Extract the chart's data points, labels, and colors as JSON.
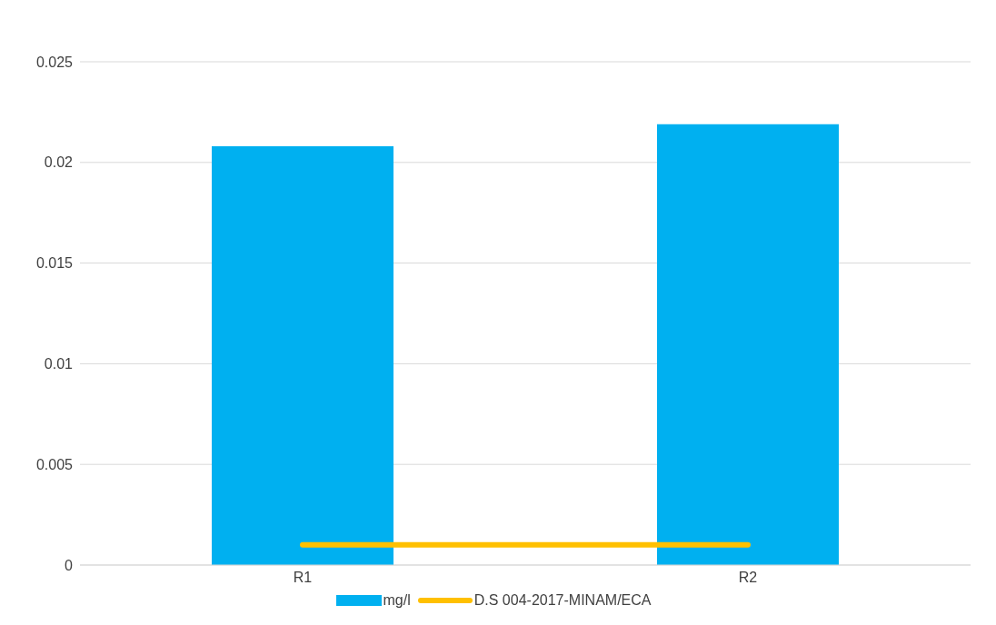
{
  "chart_data": {
    "type": "bar",
    "categories": [
      "R1",
      "R2"
    ],
    "series": [
      {
        "name": "mg/l",
        "color": "#00b0f0",
        "values": [
          0.0208,
          0.0219
        ]
      },
      {
        "name": "D.S 004-2017-MINAM/ECA",
        "type": "line",
        "color": "#ffc000",
        "values": [
          0.001,
          0.001
        ]
      }
    ],
    "ylim": [
      0,
      0.025
    ],
    "yticks": [
      0,
      0.005,
      0.01,
      0.015,
      0.02,
      0.025
    ],
    "grid": "y",
    "legend": "bottom",
    "marker": "none",
    "line_style": "solid"
  }
}
